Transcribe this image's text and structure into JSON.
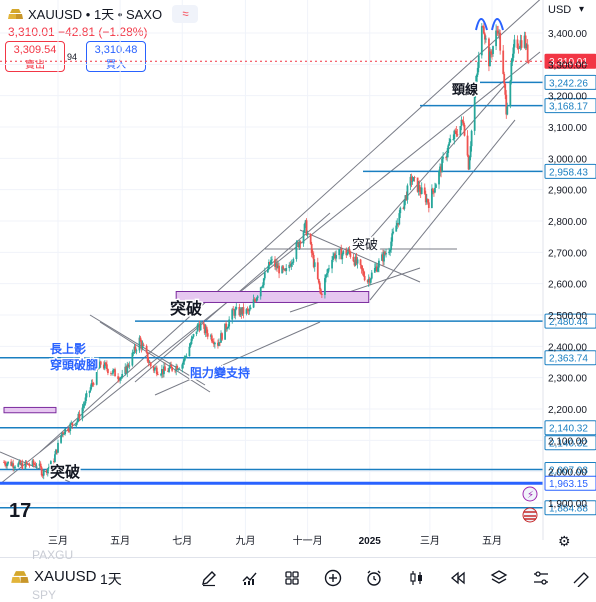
{
  "header": {
    "symbol_line": "XAUUSD • 1天 • SAXO",
    "price_line": "3,310.01 −42.81 (−1.28%)",
    "sell_price": "3,309.54",
    "sell_label": "賣出",
    "spread": "94",
    "buy_price": "3,310.48",
    "buy_label": "買入",
    "currency": "USD",
    "wave_glyph": "≈"
  },
  "colors": {
    "up": "#26a69a",
    "down": "#ef5350",
    "accent": "#2962ff",
    "hline": "#1a7fc1",
    "zone_fill": "#e6c7f0",
    "zone_border": "#7b2b9e",
    "price_tag": "#f23645"
  },
  "chart_data": {
    "type": "candlestick",
    "symbol": "XAUUSD",
    "interval": "1D",
    "currency": "USD",
    "x_tick_labels": [
      "三月",
      "五月",
      "七月",
      "九月",
      "十一月",
      "2025",
      "三月",
      "五月"
    ],
    "x_tick_dates": [
      "2024-03-01",
      "2024-05-01",
      "2024-07-01",
      "2024-09-01",
      "2024-11-01",
      "2025-01-01",
      "2025-03-01",
      "2025-05-01"
    ],
    "x_range": [
      "2024-01-08",
      "2025-06-08"
    ],
    "y_tick_labels": [
      "3,400.00",
      "3,300.00",
      "3,200.00",
      "3,100.00",
      "3,000.00",
      "2,900.00",
      "2,800.00",
      "2,700.00",
      "2,600.00",
      "2,500.00",
      "2,400.00",
      "2,300.00",
      "2,200.00",
      "2,100.00",
      "2,000.00",
      "1,900.00"
    ],
    "y_ticks": [
      3400,
      3300,
      3200,
      3100,
      3000,
      2900,
      2800,
      2700,
      2600,
      2500,
      2400,
      2300,
      2200,
      2100,
      2000,
      1900
    ],
    "ylim": [
      1820,
      3520
    ],
    "close_series": [
      {
        "date": "2024-01-08",
        "close": 2030
      },
      {
        "date": "2024-01-25",
        "close": 2020
      },
      {
        "date": "2024-02-10",
        "close": 2025
      },
      {
        "date": "2024-02-15",
        "close": 1995
      },
      {
        "date": "2024-02-25",
        "close": 2030
      },
      {
        "date": "2024-03-05",
        "close": 2125
      },
      {
        "date": "2024-03-20",
        "close": 2165
      },
      {
        "date": "2024-04-01",
        "close": 2260
      },
      {
        "date": "2024-04-12",
        "close": 2345
      },
      {
        "date": "2024-04-22",
        "close": 2320
      },
      {
        "date": "2024-05-03",
        "close": 2300
      },
      {
        "date": "2024-05-20",
        "close": 2420
      },
      {
        "date": "2024-06-01",
        "close": 2330
      },
      {
        "date": "2024-06-14",
        "close": 2320
      },
      {
        "date": "2024-07-01",
        "close": 2345
      },
      {
        "date": "2024-07-17",
        "close": 2470
      },
      {
        "date": "2024-08-05",
        "close": 2410
      },
      {
        "date": "2024-08-20",
        "close": 2510
      },
      {
        "date": "2024-09-05",
        "close": 2510
      },
      {
        "date": "2024-09-26",
        "close": 2670
      },
      {
        "date": "2024-10-10",
        "close": 2630
      },
      {
        "date": "2024-10-30",
        "close": 2785
      },
      {
        "date": "2024-11-14",
        "close": 2565
      },
      {
        "date": "2024-11-25",
        "close": 2690
      },
      {
        "date": "2024-12-12",
        "close": 2700
      },
      {
        "date": "2024-12-30",
        "close": 2610
      },
      {
        "date": "2025-01-20",
        "close": 2715
      },
      {
        "date": "2025-02-11",
        "close": 2935
      },
      {
        "date": "2025-02-28",
        "close": 2860
      },
      {
        "date": "2025-03-20",
        "close": 3045
      },
      {
        "date": "2025-04-03",
        "close": 3120
      },
      {
        "date": "2025-04-08",
        "close": 2980
      },
      {
        "date": "2025-04-15",
        "close": 3230
      },
      {
        "date": "2025-04-22",
        "close": 3440
      },
      {
        "date": "2025-04-28",
        "close": 3310
      },
      {
        "date": "2025-05-07",
        "close": 3420
      },
      {
        "date": "2025-05-15",
        "close": 3160
      },
      {
        "date": "2025-05-23",
        "close": 3360
      },
      {
        "date": "2025-06-02",
        "close": 3380
      },
      {
        "date": "2025-06-06",
        "close": 3310
      }
    ],
    "horizontal_levels": [
      3310.01,
      3242.26,
      3168.17,
      2958.43,
      2480.44,
      2363.74,
      2140.32,
      2140.32,
      2007.03,
      1963.15,
      1884.88
    ],
    "current_price": 3310.01,
    "zones": [
      {
        "from": "2024-06-25",
        "to": "2024-12-31",
        "low": 2540,
        "high": 2575
      },
      {
        "from": "2024-01-08",
        "to": "2024-02-28",
        "low": 2188,
        "high": 2205
      }
    ],
    "annotations": [
      "突破",
      "長上影",
      "穿頭破腳",
      "阻力變支持",
      "突破",
      "頸線",
      "突破"
    ]
  },
  "toolbar": {
    "symbol": "XAUUSD",
    "interval": "1天",
    "ghost_top": "PAXGU",
    "ghost_bottom": "SPY"
  }
}
